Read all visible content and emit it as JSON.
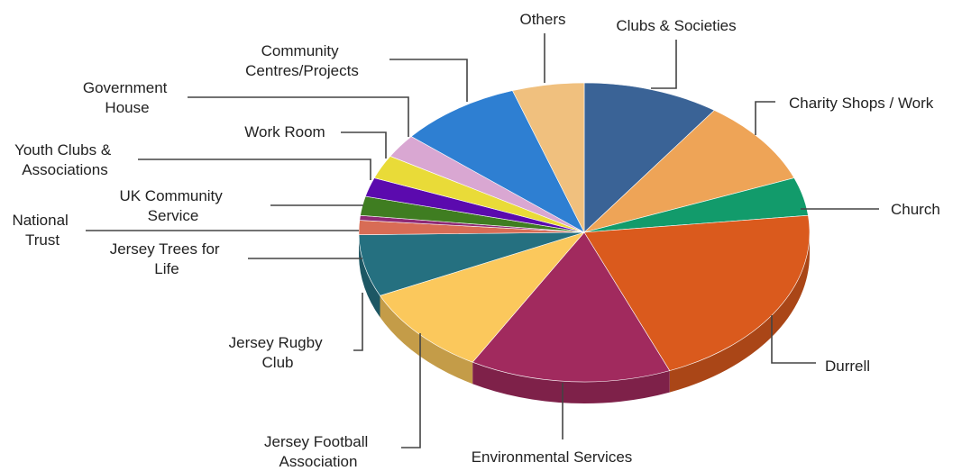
{
  "chart_data": {
    "type": "pie",
    "style": "3d",
    "slices": [
      {
        "label": "Clubs & Societies",
        "value": 9.5,
        "color": "#3A6396"
      },
      {
        "label": "Charity Shops / Work",
        "value": 9.0,
        "color": "#EEA457"
      },
      {
        "label": "Church",
        "value": 4.0,
        "color": "#129B6B"
      },
      {
        "label": "Durrell",
        "value": 20.0,
        "color": "#DA5A1D"
      },
      {
        "label": "Environmental Services",
        "value": 14.0,
        "color": "#A12A5E"
      },
      {
        "label": "Jersey Football Association",
        "value": 9.5,
        "color": "#FBC85C"
      },
      {
        "label": "Jersey Rugby Club",
        "value": 6.5,
        "color": "#257080"
      },
      {
        "label": "Jersey Trees for Life",
        "value": 1.5,
        "color": "#D86C55"
      },
      {
        "label": "National Trust",
        "value": 0.5,
        "color": "#8E2A75"
      },
      {
        "label": "UK Community Service",
        "value": 2.0,
        "color": "#3F7D21"
      },
      {
        "label": "Youth Clubs & Associations",
        "value": 2.0,
        "color": "#5B0AAE"
      },
      {
        "label": "Work Room",
        "value": 2.5,
        "color": "#E9DB38"
      },
      {
        "label": "Government House",
        "value": 2.5,
        "color": "#D9A7D2"
      },
      {
        "label": "Community Centres/Projects",
        "value": 8.5,
        "color": "#2E7FD2"
      },
      {
        "label": "Others",
        "value": 5.0,
        "color": "#F0C07E"
      }
    ]
  }
}
